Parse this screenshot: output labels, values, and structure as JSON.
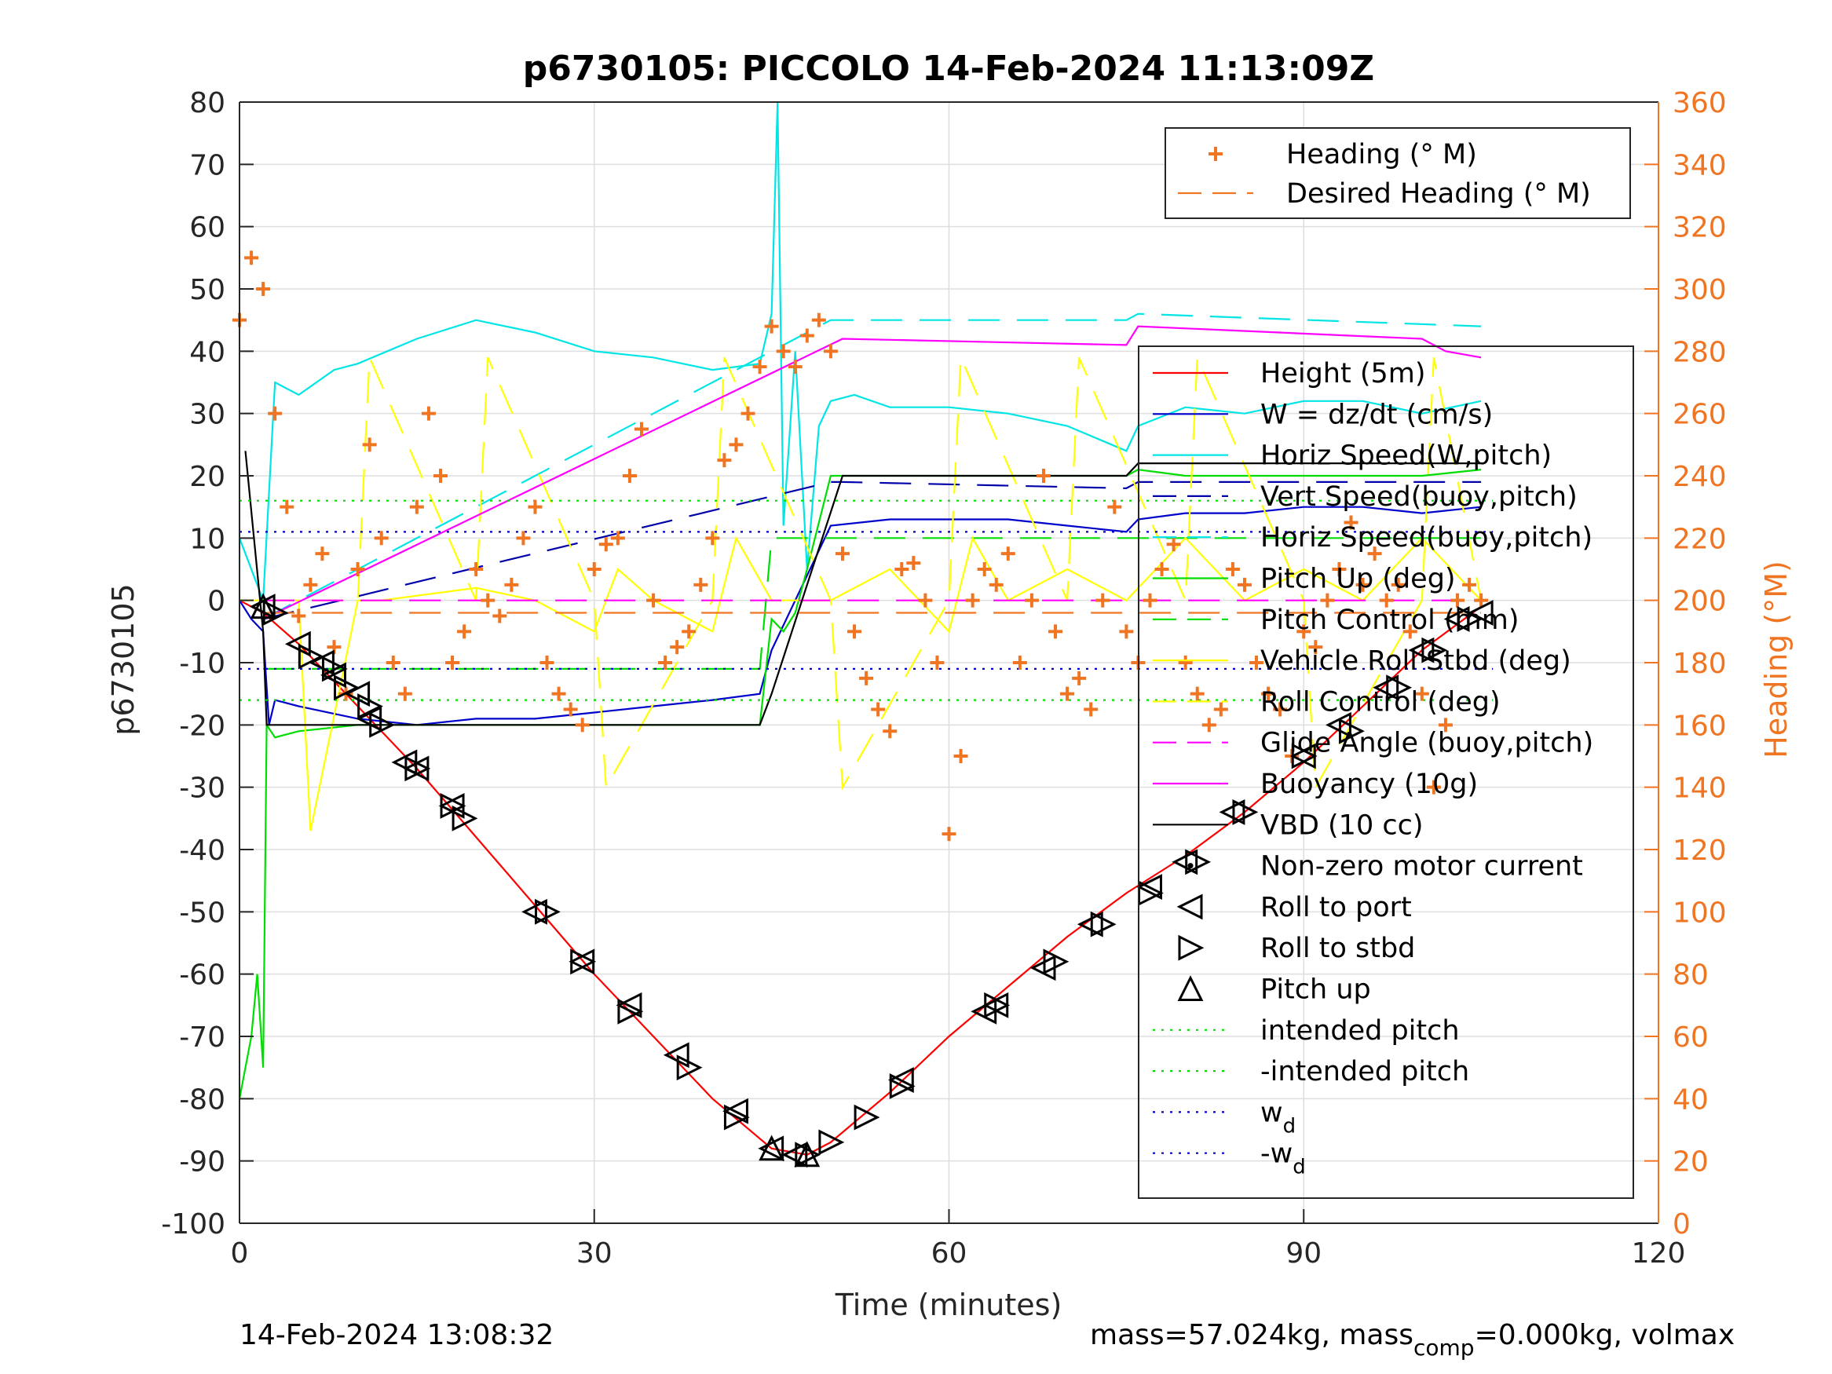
{
  "chart_data": {
    "type": "line",
    "title": "p6730105: PICCOLO 14-Feb-2024 11:13:09Z",
    "xlabel": "Time (minutes)",
    "ylabel_left": "p6730105",
    "ylabel_right": "Heading (°M)",
    "xlim": [
      0,
      120
    ],
    "ylim_left": [
      -100,
      80
    ],
    "ylim_right": [
      0,
      360
    ],
    "xticks": [
      0,
      30,
      60,
      90,
      120
    ],
    "yticks_left": [
      -100,
      -90,
      -80,
      -70,
      -60,
      -50,
      -40,
      -30,
      -20,
      -10,
      0,
      10,
      20,
      30,
      40,
      50,
      60,
      70,
      80
    ],
    "yticks_right": [
      0,
      20,
      40,
      60,
      80,
      100,
      120,
      140,
      160,
      180,
      200,
      220,
      240,
      260,
      280,
      300,
      320,
      340,
      360
    ],
    "grid": true,
    "footer_left": "14-Feb-2024 13:08:32",
    "footer_right_parts": [
      "mass=57.024kg, mass",
      "comp",
      "=0.000kg, volmax"
    ],
    "legend_right_axis": [
      {
        "label": "Heading (° M)",
        "color": "#f07522",
        "style": "plus"
      },
      {
        "label": "Desired Heading (° M)",
        "color": "#f07522",
        "style": "dash"
      }
    ],
    "legend_left_axis": [
      {
        "label": "Height (5m)",
        "color": "#ff0000",
        "style": "solid"
      },
      {
        "label": "W = dz/dt (cm/s)",
        "color": "#0000cc",
        "style": "solid"
      },
      {
        "label": "Horiz Speed(W,pitch)",
        "color": "#00e5e5",
        "style": "solid"
      },
      {
        "label": "Vert Speed(buoy,pitch)",
        "color": "#0000aa",
        "style": "dash"
      },
      {
        "label": "Horiz Speed(buoy,pitch)",
        "color": "#00e5e5",
        "style": "dash"
      },
      {
        "label": "Pitch Up (deg)",
        "color": "#00dd00",
        "style": "solid"
      },
      {
        "label": "Pitch Control (mm)",
        "color": "#00dd00",
        "style": "dash"
      },
      {
        "label": "Vehicle Roll Stbd (deg)",
        "color": "#ffff00",
        "style": "solid"
      },
      {
        "label": "Roll Control (deg)",
        "color": "#ffff00",
        "style": "dash"
      },
      {
        "label": "Glide Angle (buoy,pitch)",
        "color": "#ff00ff",
        "style": "dash"
      },
      {
        "label": "Buoyancy (10g)",
        "color": "#ff00ff",
        "style": "solid"
      },
      {
        "label": "VBD (10 cc)",
        "color": "#000000",
        "style": "solid"
      },
      {
        "label": "Non-zero motor current",
        "color": "#000000",
        "style": "dot-marker"
      },
      {
        "label": "Roll to port",
        "color": "#000000",
        "style": "tri-left"
      },
      {
        "label": "Roll to stbd",
        "color": "#000000",
        "style": "tri-right"
      },
      {
        "label": "Pitch up",
        "color": "#000000",
        "style": "tri-up"
      },
      {
        "label": "intended pitch",
        "color": "#00dd00",
        "style": "dot"
      },
      {
        "label": "-intended pitch",
        "color": "#00dd00",
        "style": "dot"
      },
      {
        "label": "w",
        "sub": "d",
        "color": "#0000cc",
        "style": "dot"
      },
      {
        "label": "-w",
        "sub": "d",
        "color": "#0000cc",
        "style": "dot"
      }
    ],
    "series": [
      {
        "name": "Height (5m)",
        "axis": "left",
        "color": "#ff0000",
        "style": "solid",
        "x": [
          0,
          2,
          5,
          10,
          15,
          20,
          25,
          30,
          35,
          40,
          45,
          48,
          50,
          55,
          60,
          65,
          70,
          75,
          80,
          85,
          90,
          95,
          100,
          105
        ],
        "y": [
          0,
          -2,
          -7,
          -17,
          -27,
          -38,
          -49,
          -60,
          -70,
          -80,
          -88,
          -89,
          -87,
          -79,
          -70,
          -62,
          -54,
          -47,
          -41,
          -34,
          -26,
          -17,
          -8,
          -1
        ]
      },
      {
        "name": "W = dz/dt (cm/s)",
        "axis": "left",
        "color": "#0000cc",
        "style": "solid",
        "x": [
          0,
          1,
          2,
          2.5,
          3,
          5,
          10,
          15,
          20,
          25,
          30,
          35,
          40,
          44,
          45,
          47,
          49,
          50,
          55,
          60,
          65,
          70,
          75,
          76,
          80,
          85,
          90,
          95,
          100,
          105
        ],
        "y": [
          0,
          -3,
          -5,
          -20,
          -16,
          -17,
          -19,
          -20,
          -19,
          -19,
          -18,
          -17,
          -16,
          -15,
          -8,
          0,
          8,
          12,
          13,
          13,
          13,
          12,
          11,
          13,
          14,
          14,
          15,
          15,
          14,
          15
        ]
      },
      {
        "name": "Horiz Speed(W,pitch)",
        "axis": "left",
        "color": "#00e5e5",
        "style": "solid",
        "x": [
          0,
          2,
          3,
          5,
          8,
          10,
          15,
          20,
          25,
          30,
          35,
          40,
          44,
          45,
          45.5,
          46,
          47,
          48,
          49,
          50,
          52,
          55,
          60,
          65,
          70,
          75,
          76,
          80,
          85,
          90,
          95,
          100,
          105
        ],
        "y": [
          10,
          0,
          35,
          33,
          37,
          38,
          42,
          45,
          43,
          40,
          39,
          37,
          38,
          46,
          80,
          12,
          40,
          5,
          28,
          32,
          33,
          31,
          31,
          30,
          28,
          24,
          28,
          31,
          30,
          32,
          32,
          30,
          32
        ]
      },
      {
        "name": "Vert Speed(buoy,pitch)",
        "axis": "left",
        "color": "#0000aa",
        "style": "dash",
        "x": [
          2,
          50,
          51,
          75,
          76,
          105
        ],
        "y": [
          -3,
          19,
          19,
          18,
          19,
          19
        ]
      },
      {
        "name": "Horiz Speed(buoy,pitch)",
        "axis": "left",
        "color": "#00e5e5",
        "style": "dash",
        "x": [
          2,
          50,
          51,
          75,
          76,
          105
        ],
        "y": [
          -3,
          45,
          45,
          45,
          46,
          44
        ]
      },
      {
        "name": "Pitch Up (deg)",
        "axis": "left",
        "color": "#00dd00",
        "style": "solid",
        "x": [
          0,
          1,
          1.5,
          2,
          2.3,
          3,
          5,
          10,
          20,
          30,
          40,
          44,
          45,
          46,
          47,
          48,
          50,
          55,
          60,
          70,
          75,
          76,
          80,
          90,
          100,
          105
        ],
        "y": [
          -80,
          -70,
          -60,
          -75,
          -20,
          -22,
          -21,
          -20,
          -20,
          -20,
          -20,
          -20,
          -3,
          -5,
          -2,
          5,
          20,
          20,
          20,
          20,
          20,
          21,
          20,
          20,
          20,
          21
        ]
      },
      {
        "name": "Pitch Control (mm)",
        "axis": "left",
        "color": "#00dd00",
        "style": "dash",
        "x": [
          2,
          44,
          45,
          105
        ],
        "y": [
          -11,
          -11,
          10,
          10
        ]
      },
      {
        "name": "Vehicle Roll Stbd (deg)",
        "axis": "left",
        "color": "#ffff00",
        "style": "solid",
        "x": [
          0,
          5,
          6,
          10,
          12,
          20,
          25,
          30,
          32,
          35,
          40,
          42,
          45,
          50,
          55,
          60,
          62,
          65,
          70,
          75,
          80,
          85,
          90,
          95,
          100,
          105
        ],
        "y": [
          0,
          0,
          -37,
          0,
          0,
          2,
          0,
          -5,
          5,
          0,
          -5,
          10,
          0,
          0,
          5,
          -5,
          10,
          0,
          5,
          0,
          10,
          0,
          5,
          0,
          10,
          0
        ]
      },
      {
        "name": "Roll Control (deg)",
        "axis": "left",
        "color": "#ffff00",
        "style": "dash",
        "x": [
          2,
          10,
          11,
          20,
          21,
          30,
          31,
          40,
          41,
          50,
          51,
          60,
          61,
          70,
          71,
          80,
          81,
          90,
          91,
          100,
          101,
          105
        ],
        "y": [
          0,
          0,
          39,
          0,
          39,
          0,
          -30,
          0,
          39,
          0,
          -30,
          0,
          39,
          0,
          39,
          0,
          39,
          0,
          -30,
          0,
          39,
          0
        ]
      },
      {
        "name": "Glide Angle (buoy,pitch)",
        "axis": "left",
        "color": "#ff00ff",
        "style": "dash",
        "x": [
          2,
          105
        ],
        "y": [
          0,
          0
        ]
      },
      {
        "name": "Buoyancy (10g)",
        "axis": "left",
        "color": "#ff00ff",
        "style": "solid",
        "x": [
          2,
          51,
          75,
          76,
          100,
          102,
          105
        ],
        "y": [
          -3,
          42,
          41,
          44,
          42,
          40,
          39
        ]
      },
      {
        "name": "VBD (10 cc)",
        "axis": "left",
        "color": "#000000",
        "style": "solid",
        "x": [
          0.5,
          2,
          2.3,
          44,
          45,
          51,
          75,
          76,
          105
        ],
        "y": [
          24,
          -5,
          -20,
          -20,
          -15,
          20,
          20,
          22,
          22
        ]
      },
      {
        "name": "intended pitch",
        "axis": "left",
        "color": "#00dd00",
        "style": "dot",
        "x": [
          0,
          106
        ],
        "y": [
          16,
          16
        ]
      },
      {
        "name": "-intended pitch",
        "axis": "left",
        "color": "#00dd00",
        "style": "dot",
        "x": [
          0,
          106
        ],
        "y": [
          -16,
          -16
        ]
      },
      {
        "name": "w",
        "axis": "left",
        "color": "#0000cc",
        "style": "dot",
        "x": [
          0,
          106
        ],
        "y": [
          11,
          11
        ]
      },
      {
        "name": "-w",
        "axis": "left",
        "color": "#0000cc",
        "style": "dot",
        "x": [
          0,
          106
        ],
        "y": [
          -11,
          -11
        ]
      },
      {
        "name": "Desired Heading (° M)",
        "axis": "right",
        "color": "#f07522",
        "style": "dash",
        "x": [
          2,
          105
        ],
        "y": [
          196,
          196
        ]
      },
      {
        "name": "Heading (° M)",
        "axis": "right",
        "color": "#f07522",
        "style": "plus",
        "x": [
          0,
          1,
          2,
          3,
          4,
          5,
          6,
          7,
          8,
          9,
          10,
          11,
          12,
          13,
          14,
          15,
          16,
          17,
          18,
          19,
          20,
          21,
          22,
          23,
          24,
          25,
          26,
          27,
          28,
          29,
          30,
          31,
          32,
          33,
          34,
          35,
          36,
          37,
          38,
          39,
          40,
          41,
          42,
          43,
          44,
          45,
          46,
          47,
          48,
          49,
          50,
          51,
          52,
          53,
          54,
          55,
          56,
          57,
          58,
          59,
          60,
          61,
          62,
          63,
          64,
          65,
          66,
          67,
          68,
          69,
          70,
          71,
          72,
          73,
          74,
          75,
          76,
          77,
          78,
          79,
          80,
          81,
          82,
          83,
          84,
          85,
          86,
          87,
          88,
          89,
          90,
          91,
          92,
          93,
          94,
          95,
          96,
          97,
          98,
          99,
          100,
          101,
          102,
          103,
          104,
          105
        ],
        "y": [
          290,
          310,
          300,
          260,
          230,
          195,
          205,
          215,
          185,
          170,
          210,
          250,
          220,
          180,
          170,
          230,
          260,
          240,
          180,
          190,
          210,
          200,
          195,
          205,
          220,
          230,
          180,
          170,
          165,
          160,
          210,
          218,
          220,
          240,
          255,
          200,
          180,
          185,
          190,
          205,
          220,
          245,
          250,
          260,
          275,
          288,
          280,
          275,
          285,
          290,
          280,
          215,
          190,
          175,
          165,
          158,
          210,
          212,
          200,
          180,
          125,
          150,
          200,
          210,
          205,
          215,
          180,
          200,
          240,
          190,
          170,
          175,
          165,
          200,
          230,
          190,
          180,
          200,
          210,
          218,
          180,
          170,
          160,
          165,
          210,
          205,
          180,
          170,
          165,
          150,
          190,
          185,
          200,
          210,
          225,
          205,
          215,
          200,
          205,
          190,
          170,
          140,
          160,
          200,
          205,
          200
        ]
      }
    ],
    "markers": {
      "roll_to_port": {
        "x": [
          2,
          5,
          7,
          8,
          10,
          11,
          14,
          15,
          18,
          25,
          29,
          33,
          37,
          42,
          45,
          47,
          56,
          63,
          64,
          68,
          72,
          77,
          80,
          84,
          90,
          93,
          97,
          100,
          103,
          105
        ],
        "y": [
          -1,
          -7,
          -10,
          -12,
          -15,
          -19,
          -26,
          -27,
          -33,
          -50,
          -58,
          -65,
          -73,
          -82,
          -88,
          -89,
          -77,
          -66,
          -65,
          -59,
          -52,
          -46,
          -42,
          -34,
          -25,
          -20,
          -14,
          -8,
          -3,
          -2
        ]
      },
      "roll_to_stbd": {
        "x": [
          3,
          6,
          8,
          9,
          11,
          12,
          15,
          18,
          19,
          26,
          29,
          33,
          38,
          42,
          48,
          50,
          53,
          56,
          64,
          69,
          73,
          77,
          81,
          85,
          90,
          94,
          98,
          101,
          104
        ],
        "y": [
          -2,
          -9,
          -11,
          -14,
          -17,
          -20,
          -27,
          -33,
          -35,
          -50,
          -58,
          -66,
          -75,
          -83,
          -89,
          -87,
          -83,
          -78,
          -65,
          -58,
          -52,
          -47,
          -42,
          -34,
          -25,
          -21,
          -14,
          -8,
          -3
        ]
      },
      "pitch_up": {
        "x": [
          2,
          45,
          48
        ],
        "y": [
          -1,
          -88,
          -89
        ]
      }
    }
  }
}
